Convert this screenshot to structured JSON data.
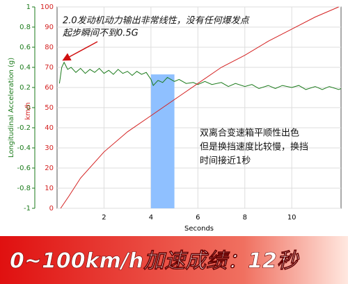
{
  "chart_data": {
    "type": "line",
    "ylabel": "Longitudinal Acceleration (g)",
    "y2label": "km/h",
    "xlabel": "Seconds",
    "xlim": [
      0,
      12.1
    ],
    "xticks": [
      2,
      4,
      6,
      8,
      10
    ],
    "ylim": [
      -1,
      1
    ],
    "yticks": [
      1,
      0.8,
      0.6,
      0.4,
      0.2,
      0,
      -0.2,
      -0.4,
      -0.6,
      -0.8,
      -1
    ],
    "y2lim": [
      0,
      100
    ],
    "y2ticks": [
      100,
      90,
      80,
      70,
      60,
      50,
      40,
      30,
      20,
      10,
      0
    ],
    "grid": true,
    "series": [
      {
        "name": "Longitudinal Acceleration (g)",
        "color": "#1a7a1a",
        "x": [
          0.1,
          0.2,
          0.3,
          0.45,
          0.6,
          0.8,
          1.0,
          1.2,
          1.4,
          1.6,
          1.8,
          2.0,
          2.2,
          2.4,
          2.6,
          2.8,
          3.0,
          3.2,
          3.4,
          3.6,
          3.8,
          4.0,
          4.1,
          4.3,
          4.5,
          4.7,
          5.0,
          5.2,
          5.5,
          5.8,
          6.0,
          6.3,
          6.6,
          7.0,
          7.3,
          7.6,
          8.0,
          8.3,
          8.6,
          9.0,
          9.3,
          9.6,
          10.0,
          10.3,
          10.6,
          11.0,
          11.3,
          11.6,
          12.0,
          12.1
        ],
        "values": [
          0.24,
          0.4,
          0.45,
          0.38,
          0.4,
          0.35,
          0.39,
          0.34,
          0.38,
          0.35,
          0.39,
          0.34,
          0.37,
          0.33,
          0.38,
          0.34,
          0.36,
          0.32,
          0.36,
          0.33,
          0.35,
          0.28,
          0.22,
          0.27,
          0.25,
          0.3,
          0.26,
          0.28,
          0.24,
          0.25,
          0.23,
          0.26,
          0.23,
          0.25,
          0.21,
          0.24,
          0.21,
          0.23,
          0.19,
          0.22,
          0.19,
          0.22,
          0.2,
          0.22,
          0.18,
          0.21,
          0.18,
          0.21,
          0.18,
          0.19
        ]
      },
      {
        "name": "km/h",
        "color": "#d42020",
        "axis": "y2",
        "x": [
          0.15,
          0.5,
          1,
          2,
          3,
          4,
          5,
          6,
          7,
          8,
          9,
          10,
          11,
          12
        ],
        "values": [
          0,
          6,
          15,
          28,
          38,
          46,
          54,
          62,
          70,
          76,
          83,
          89,
          95,
          100
        ]
      }
    ],
    "highlight": {
      "x": [
        4,
        5
      ],
      "top": 0.33,
      "color": "#8fc0ff"
    },
    "annotations": [
      "2.0发动机动力输出非常线性，没有任何爆发点",
      "起步瞬间不到0.5G",
      "双离合变速箱平顺性出色",
      "但是换挡速度比较慢，换挡",
      "时间接近1秒"
    ],
    "banner": "0~100km/h加速成绩：12秒"
  }
}
